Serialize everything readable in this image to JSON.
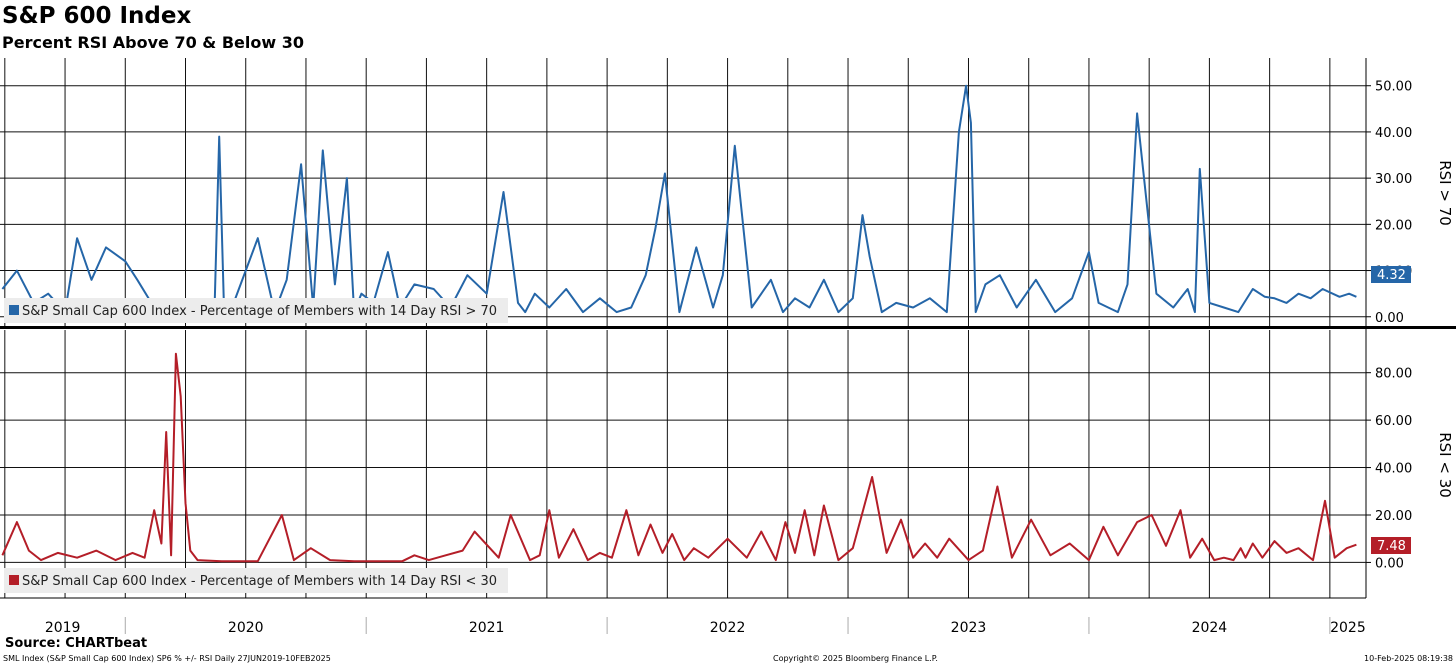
{
  "title": "S&P 600 Index",
  "subtitle": "Percent RSI Above 70 & Below 30",
  "source": "Source: CHARTbeat",
  "footer_left": "SML Index (S&P Small Cap 600 Index) SP6 % +/- RSI  Daily 27JUN2019-10FEB2025",
  "footer_mid": "Copyright© 2025 Bloomberg Finance L.P.",
  "footer_right": "10-Feb-2025 08:19:38",
  "x_labels": [
    "2019",
    "2020",
    "2021",
    "2022",
    "2023",
    "2024",
    "2025"
  ],
  "chart_data": [
    {
      "type": "line",
      "ylabel": "RSI > 70",
      "ylim": [
        -2,
        56
      ],
      "yticks": [
        "0.00",
        "10.00",
        "20.00",
        "30.00",
        "40.00",
        "50.00"
      ],
      "grid": true,
      "legend_position": "bottom-left",
      "last_value": "4.32",
      "series": [
        {
          "name": "S&P Small Cap 600 Index - Percentage of Members with 14 Day RSI > 70",
          "color": "#2566a8",
          "x": [
            2019.49,
            2019.55,
            2019.62,
            2019.68,
            2019.75,
            2019.8,
            2019.86,
            2019.92,
            2020.0,
            2020.05,
            2020.12,
            2020.2,
            2020.26,
            2020.33,
            2020.37,
            2020.39,
            2020.41,
            2020.45,
            2020.55,
            2020.62,
            2020.67,
            2020.73,
            2020.78,
            2020.82,
            2020.87,
            2020.92,
            2020.95,
            2020.98,
            2021.03,
            2021.09,
            2021.14,
            2021.2,
            2021.28,
            2021.35,
            2021.42,
            2021.5,
            2021.57,
            2021.63,
            2021.66,
            2021.7,
            2021.76,
            2021.83,
            2021.9,
            2021.97,
            2022.04,
            2022.1,
            2022.16,
            2022.2,
            2022.24,
            2022.3,
            2022.37,
            2022.44,
            2022.48,
            2022.53,
            2022.6,
            2022.68,
            2022.73,
            2022.78,
            2022.84,
            2022.9,
            2022.96,
            2023.02,
            2023.06,
            2023.09,
            2023.14,
            2023.2,
            2023.27,
            2023.34,
            2023.41,
            2023.46,
            2023.49,
            2023.51,
            2023.53,
            2023.57,
            2023.63,
            2023.7,
            2023.78,
            2023.86,
            2023.93,
            2024.0,
            2024.04,
            2024.08,
            2024.12,
            2024.16,
            2024.2,
            2024.28,
            2024.35,
            2024.41,
            2024.44,
            2024.46,
            2024.5,
            2024.56,
            2024.62,
            2024.68,
            2024.73,
            2024.77,
            2024.82,
            2024.87,
            2024.92,
            2024.97,
            2025.04,
            2025.08,
            2025.11
          ],
          "values": [
            6,
            10,
            3,
            5,
            1,
            17,
            8,
            15,
            12,
            8,
            2,
            0.5,
            1,
            3,
            0.5,
            39,
            1,
            3,
            17,
            1,
            8,
            33,
            2,
            36,
            7,
            30,
            1,
            5,
            3,
            14,
            2,
            7,
            6,
            2,
            9,
            5,
            27,
            3,
            1,
            5,
            2,
            6,
            1,
            4,
            1,
            2,
            9,
            19,
            31,
            1,
            15,
            2,
            9,
            37,
            2,
            8,
            1,
            4,
            2,
            8,
            1,
            4,
            22,
            13,
            1,
            3,
            2,
            4,
            1,
            40,
            50,
            42,
            1,
            7,
            9,
            2,
            8,
            1,
            4,
            14,
            3,
            2,
            1,
            7,
            44,
            5,
            2,
            6,
            1,
            32,
            3,
            2,
            1,
            6,
            4.32,
            4,
            3,
            5,
            4,
            6,
            4.32,
            5,
            4.32
          ]
        }
      ]
    },
    {
      "type": "line",
      "ylabel": "RSI < 30",
      "ylim": [
        -15,
        98
      ],
      "yticks": [
        "0.00",
        "20.00",
        "40.00",
        "60.00",
        "80.00"
      ],
      "grid": true,
      "legend_position": "bottom-left",
      "last_value": "7.48",
      "series": [
        {
          "name": "S&P Small Cap 600 Index - Percentage of Members with 14 Day RSI < 30",
          "color": "#b41e28",
          "x": [
            2019.49,
            2019.55,
            2019.6,
            2019.65,
            2019.72,
            2019.8,
            2019.88,
            2019.96,
            2020.03,
            2020.08,
            2020.12,
            2020.15,
            2020.17,
            2020.19,
            2020.21,
            2020.23,
            2020.25,
            2020.27,
            2020.3,
            2020.4,
            2020.55,
            2020.65,
            2020.7,
            2020.77,
            2020.85,
            2020.95,
            2021.05,
            2021.15,
            2021.2,
            2021.26,
            2021.33,
            2021.4,
            2021.45,
            2021.55,
            2021.6,
            2021.68,
            2021.72,
            2021.76,
            2021.8,
            2021.86,
            2021.92,
            2021.97,
            2022.02,
            2022.08,
            2022.13,
            2022.18,
            2022.23,
            2022.27,
            2022.32,
            2022.36,
            2022.42,
            2022.5,
            2022.58,
            2022.64,
            2022.7,
            2022.74,
            2022.78,
            2022.82,
            2022.86,
            2022.9,
            2022.96,
            2023.02,
            2023.1,
            2023.16,
            2023.22,
            2023.27,
            2023.32,
            2023.37,
            2023.42,
            2023.5,
            2023.56,
            2023.62,
            2023.68,
            2023.76,
            2023.84,
            2023.92,
            2024.0,
            2024.06,
            2024.12,
            2024.2,
            2024.26,
            2024.32,
            2024.38,
            2024.42,
            2024.47,
            2024.52,
            2024.56,
            2024.6,
            2024.63,
            2024.65,
            2024.68,
            2024.72,
            2024.77,
            2024.82,
            2024.87,
            2024.93,
            2024.98,
            2025.02,
            2025.07,
            2025.11
          ],
          "values": [
            3,
            17,
            5,
            1,
            4,
            2,
            5,
            1,
            4,
            2,
            22,
            8,
            55,
            3,
            88,
            70,
            25,
            5,
            1,
            0.5,
            0.5,
            20,
            1,
            6,
            1,
            0.5,
            0.5,
            0.5,
            3,
            1,
            3,
            5,
            13,
            2,
            20,
            1,
            3,
            22,
            2,
            14,
            1,
            4,
            2,
            22,
            3,
            16,
            4,
            12,
            1,
            6,
            2,
            10,
            2,
            13,
            1,
            17,
            4,
            22,
            3,
            24,
            1,
            6,
            36,
            4,
            18,
            2,
            8,
            2,
            10,
            1,
            5,
            32,
            2,
            18,
            3,
            8,
            1,
            15,
            3,
            17,
            20,
            7,
            22,
            2,
            10,
            1,
            2,
            1,
            6,
            2,
            8,
            2,
            9,
            4,
            6,
            1,
            26,
            2,
            6,
            7.48
          ]
        }
      ]
    }
  ]
}
